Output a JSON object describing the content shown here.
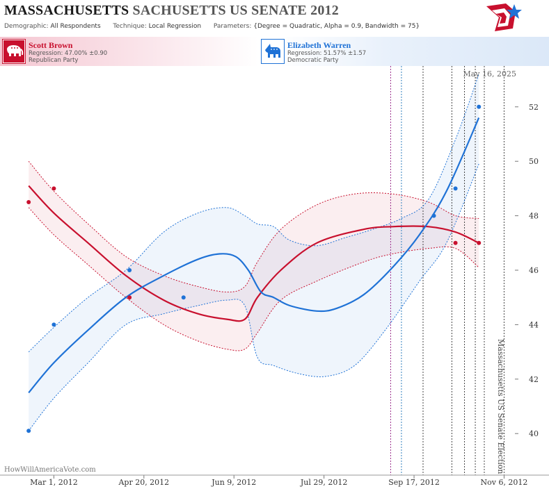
{
  "header": {
    "title_state": "MASSACHUSETTS",
    "title_rest": "SACHUSETTS US SENATE 2012",
    "demographic_label": "Demographic:",
    "demographic_value": "All Respondents",
    "technique_label": "Technique:",
    "technique_value": "Local Regression",
    "parameters_label": "Parameters:",
    "parameters_value": "{Degree = Quadratic, Alpha = 0.9, Bandwidth = 75}"
  },
  "candidates": {
    "republican": {
      "name": "Scott Brown",
      "regression": "Regression: 47.00% ±0.90",
      "party": "Republican Party",
      "color": "#c8102e",
      "icon": "elephant-icon"
    },
    "democrat": {
      "name": "Elizabeth Warren",
      "regression": "Regression: 51.57% ±1.57",
      "party": "Democratic Party",
      "color": "#1f72d6",
      "icon": "donkey-icon"
    }
  },
  "chart_data": {
    "type": "line",
    "date_stamp": "May 16, 2025",
    "watermark": "HowWillAmericaVote.com",
    "event_label": "Massachusetts US Senate Election",
    "x_ticks": [
      "2012-03-01",
      "2012-04-20",
      "2012-06-09",
      "2012-07-29",
      "2012-09-17",
      "2012-11-06"
    ],
    "x_tick_labels": [
      "Mar 1, 2012",
      "Apr 20, 2012",
      "Jun 9, 2012",
      "Jul 29, 2012",
      "Sep 17, 2012",
      "Nov 6, 2012"
    ],
    "xlim": [
      "2012-02-14",
      "2012-11-12"
    ],
    "ylim": [
      38.5,
      53.5
    ],
    "y_ticks": [
      40,
      42,
      44,
      46,
      48,
      50,
      52
    ],
    "vlines": [
      {
        "date": "2012-09-04",
        "color": "#9a2a8a"
      },
      {
        "date": "2012-09-10",
        "color": "#2f7fbf"
      },
      {
        "date": "2012-09-22",
        "color": "#444444"
      },
      {
        "date": "2012-10-08",
        "color": "#444444"
      },
      {
        "date": "2012-10-15",
        "color": "#444444"
      },
      {
        "date": "2012-10-21",
        "color": "#444444"
      },
      {
        "date": "2012-10-26",
        "color": "#444444"
      },
      {
        "date": "2012-11-06",
        "color": "#444444"
      }
    ],
    "series": [
      {
        "name": "Scott Brown",
        "color": "#c8102e",
        "points": [
          [
            "2012-02-16",
            48.5
          ],
          [
            "2012-03-01",
            49.0
          ],
          [
            "2012-04-12",
            45.0
          ],
          [
            "2012-10-10",
            47.0
          ],
          [
            "2012-10-23",
            47.0
          ]
        ],
        "fit": [
          [
            "2012-02-16",
            49.1
          ],
          [
            "2012-03-01",
            48.1
          ],
          [
            "2012-03-20",
            47.0
          ],
          [
            "2012-04-10",
            45.8
          ],
          [
            "2012-05-01",
            44.9
          ],
          [
            "2012-05-20",
            44.4
          ],
          [
            "2012-06-05",
            44.2
          ],
          [
            "2012-06-15",
            44.2
          ],
          [
            "2012-06-22",
            45.0
          ],
          [
            "2012-07-05",
            46.0
          ],
          [
            "2012-07-25",
            47.0
          ],
          [
            "2012-08-20",
            47.5
          ],
          [
            "2012-09-05",
            47.6
          ],
          [
            "2012-09-25",
            47.6
          ],
          [
            "2012-10-10",
            47.4
          ],
          [
            "2012-10-23",
            47.0
          ]
        ],
        "upper": [
          [
            "2012-02-16",
            50.0
          ],
          [
            "2012-03-01",
            48.9
          ],
          [
            "2012-03-20",
            47.7
          ],
          [
            "2012-04-10",
            46.5
          ],
          [
            "2012-05-01",
            45.8
          ],
          [
            "2012-05-20",
            45.4
          ],
          [
            "2012-06-05",
            45.2
          ],
          [
            "2012-06-15",
            45.4
          ],
          [
            "2012-06-22",
            46.3
          ],
          [
            "2012-07-05",
            47.5
          ],
          [
            "2012-07-25",
            48.4
          ],
          [
            "2012-08-15",
            48.8
          ],
          [
            "2012-09-05",
            48.8
          ],
          [
            "2012-09-25",
            48.5
          ],
          [
            "2012-10-10",
            48.0
          ],
          [
            "2012-10-23",
            47.9
          ]
        ],
        "lower": [
          [
            "2012-02-16",
            48.3
          ],
          [
            "2012-03-01",
            47.3
          ],
          [
            "2012-03-20",
            46.2
          ],
          [
            "2012-04-10",
            45.0
          ],
          [
            "2012-05-01",
            44.0
          ],
          [
            "2012-05-20",
            43.4
          ],
          [
            "2012-06-05",
            43.1
          ],
          [
            "2012-06-15",
            43.1
          ],
          [
            "2012-06-22",
            43.7
          ],
          [
            "2012-07-05",
            44.9
          ],
          [
            "2012-07-25",
            45.6
          ],
          [
            "2012-08-20",
            46.3
          ],
          [
            "2012-09-05",
            46.6
          ],
          [
            "2012-09-25",
            46.8
          ],
          [
            "2012-10-10",
            46.8
          ],
          [
            "2012-10-23",
            46.1
          ]
        ]
      },
      {
        "name": "Elizabeth Warren",
        "color": "#1f72d6",
        "points": [
          [
            "2012-02-16",
            40.1
          ],
          [
            "2012-03-01",
            44.0
          ],
          [
            "2012-04-12",
            46.0
          ],
          [
            "2012-05-12",
            45.0
          ],
          [
            "2012-09-28",
            48.0
          ],
          [
            "2012-10-10",
            49.0
          ],
          [
            "2012-10-23",
            52.0
          ]
        ],
        "fit": [
          [
            "2012-02-16",
            41.5
          ],
          [
            "2012-03-01",
            42.6
          ],
          [
            "2012-03-20",
            43.8
          ],
          [
            "2012-04-10",
            45.0
          ],
          [
            "2012-05-01",
            45.8
          ],
          [
            "2012-05-20",
            46.4
          ],
          [
            "2012-06-01",
            46.6
          ],
          [
            "2012-06-10",
            46.5
          ],
          [
            "2012-06-17",
            46.0
          ],
          [
            "2012-06-24",
            45.2
          ],
          [
            "2012-07-01",
            45.0
          ],
          [
            "2012-07-10",
            44.7
          ],
          [
            "2012-07-25",
            44.5
          ],
          [
            "2012-08-05",
            44.6
          ],
          [
            "2012-08-20",
            45.1
          ],
          [
            "2012-09-05",
            46.1
          ],
          [
            "2012-09-20",
            47.3
          ],
          [
            "2012-10-05",
            48.9
          ],
          [
            "2012-10-23",
            51.6
          ]
        ],
        "upper": [
          [
            "2012-02-16",
            43.0
          ],
          [
            "2012-03-01",
            43.9
          ],
          [
            "2012-03-20",
            45.0
          ],
          [
            "2012-04-10",
            46.0
          ],
          [
            "2012-05-01",
            47.4
          ],
          [
            "2012-05-20",
            48.1
          ],
          [
            "2012-06-05",
            48.3
          ],
          [
            "2012-06-15",
            48.0
          ],
          [
            "2012-06-22",
            47.7
          ],
          [
            "2012-07-01",
            47.6
          ],
          [
            "2012-07-10",
            47.1
          ],
          [
            "2012-07-25",
            46.9
          ],
          [
            "2012-08-10",
            47.2
          ],
          [
            "2012-08-25",
            47.5
          ],
          [
            "2012-09-10",
            47.9
          ],
          [
            "2012-09-25",
            48.6
          ],
          [
            "2012-10-10",
            50.8
          ],
          [
            "2012-10-23",
            53.2
          ]
        ],
        "lower": [
          [
            "2012-02-16",
            40.1
          ],
          [
            "2012-03-01",
            41.3
          ],
          [
            "2012-03-20",
            42.6
          ],
          [
            "2012-04-10",
            44.0
          ],
          [
            "2012-05-01",
            44.4
          ],
          [
            "2012-05-20",
            44.7
          ],
          [
            "2012-06-05",
            44.9
          ],
          [
            "2012-06-15",
            44.7
          ],
          [
            "2012-06-22",
            42.8
          ],
          [
            "2012-07-01",
            42.5
          ],
          [
            "2012-07-15",
            42.2
          ],
          [
            "2012-07-30",
            42.1
          ],
          [
            "2012-08-15",
            42.5
          ],
          [
            "2012-09-01",
            43.8
          ],
          [
            "2012-09-20",
            45.6
          ],
          [
            "2012-10-05",
            47.0
          ],
          [
            "2012-10-23",
            49.9
          ]
        ]
      }
    ]
  }
}
